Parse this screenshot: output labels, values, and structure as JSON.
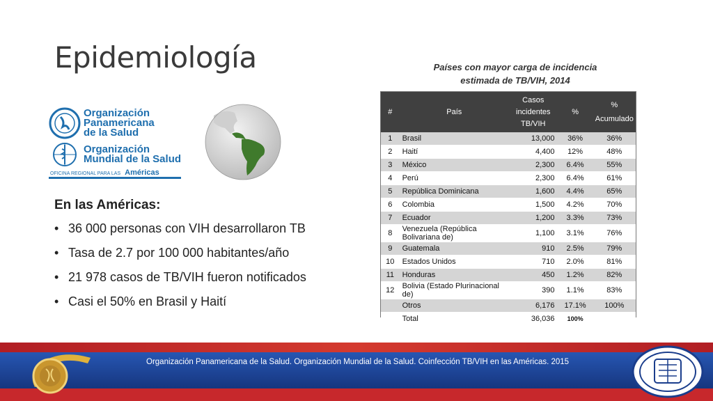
{
  "slide": {
    "title": "Epidemiología",
    "table_caption_line1": "Países con mayor carga de incidencia",
    "table_caption_line2": "estimada de TB/VIH, 2014"
  },
  "logos": {
    "paho": "Organización Panamericana de la Salud",
    "paho_l1": "Organización",
    "paho_l2": "Panamericana",
    "paho_l3": "de la Salud",
    "who_l1": "Organización",
    "who_l2": "Mundial de la Salud",
    "regional_office": "OFICINA REGIONAL PARA LAS",
    "regional_americas": "Américas"
  },
  "content": {
    "heading": "En las Américas:",
    "bullets": [
      "36 000 personas con VIH desarrollaron TB",
      "Tasa de 2.7 por 100 000 habitantes/año",
      "21 978 casos de TB/VIH fueron notificados",
      "Casi el 50% en Brasil y Haití"
    ]
  },
  "table": {
    "headers": {
      "idx": "#",
      "country": "País",
      "cases_l1": "Casos",
      "cases_l2": "incidentes",
      "cases_l3": "TB/VIH",
      "pct": "%",
      "cum_l1": "%",
      "cum_l2": "Acumulado"
    },
    "rows": [
      {
        "idx": "1",
        "country": "Brasil",
        "cases": "13,000",
        "pct": "36%",
        "cum": "36%"
      },
      {
        "idx": "2",
        "country": "Haití",
        "cases": "4,400",
        "pct": "12%",
        "cum": "48%"
      },
      {
        "idx": "3",
        "country": "México",
        "cases": "2,300",
        "pct": "6.4%",
        "cum": "55%"
      },
      {
        "idx": "4",
        "country": "Perú",
        "cases": "2,300",
        "pct": "6.4%",
        "cum": "61%"
      },
      {
        "idx": "5",
        "country": "República Dominicana",
        "cases": "1,600",
        "pct": "4.4%",
        "cum": "65%"
      },
      {
        "idx": "6",
        "country": "Colombia",
        "cases": "1,500",
        "pct": "4.2%",
        "cum": "70%"
      },
      {
        "idx": "7",
        "country": "Ecuador",
        "cases": "1,200",
        "pct": "3.3%",
        "cum": "73%"
      },
      {
        "idx": "8",
        "country": "Venezuela (República Bolivariana de)",
        "cases": "1,100",
        "pct": "3.1%",
        "cum": "76%"
      },
      {
        "idx": "9",
        "country": "Guatemala",
        "cases": "910",
        "pct": "2.5%",
        "cum": "79%"
      },
      {
        "idx": "10",
        "country": "Estados Unidos",
        "cases": "710",
        "pct": "2.0%",
        "cum": "81%"
      },
      {
        "idx": "11",
        "country": "Honduras",
        "cases": "450",
        "pct": "1.2%",
        "cum": "82%"
      },
      {
        "idx": "12",
        "country": "Bolivia (Estado Plurinacional de)",
        "cases": "390",
        "pct": "1.1%",
        "cum": "83%"
      },
      {
        "idx": "",
        "country": "Otros",
        "cases": "6,176",
        "pct": "17.1%",
        "cum": "100%"
      },
      {
        "idx": "",
        "country": "Total",
        "cases": "36,036",
        "pct": "100%",
        "cum": ""
      }
    ]
  },
  "footer": {
    "reference": "Organización Panamericana de la Salud. Organización Mundial de la Salud. Coinfección TB/VIH en las Américas. 2015",
    "colors": {
      "blue": "#1a3d8c",
      "red": "#c7282c",
      "gold": "#c9962e"
    }
  }
}
